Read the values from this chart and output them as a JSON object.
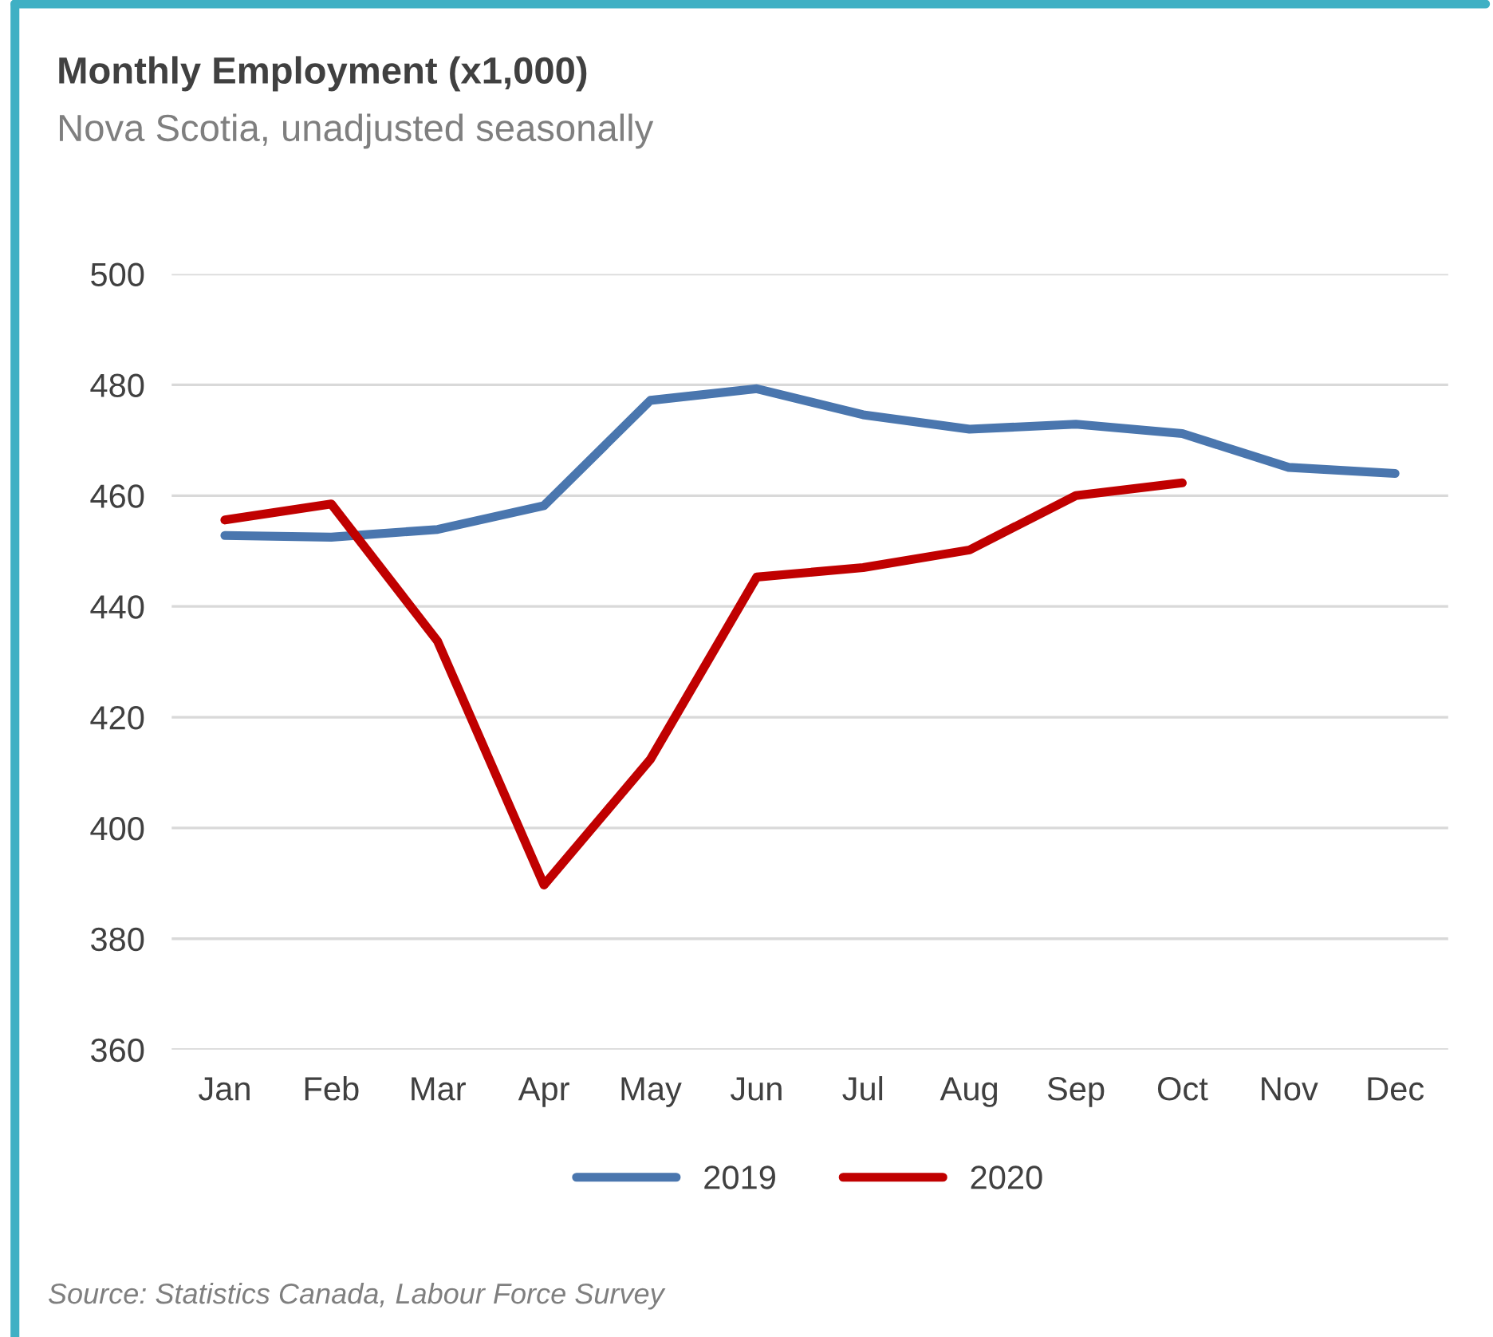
{
  "chart_data": {
    "type": "line",
    "title": "Monthly Employment (x1,000)",
    "subtitle": "Nova Scotia, unadjusted seasonally",
    "categories": [
      "Jan",
      "Feb",
      "Mar",
      "Apr",
      "May",
      "Jun",
      "Jul",
      "Aug",
      "Sep",
      "Oct",
      "Nov",
      "Dec"
    ],
    "series": [
      {
        "name": "2019",
        "color": "#4a76ae",
        "values": [
          452.8,
          452.5,
          453.9,
          458.2,
          477.2,
          479.3,
          474.6,
          472.0,
          472.9,
          471.2,
          465.1,
          464.0
        ]
      },
      {
        "name": "2020",
        "color": "#c00000",
        "values": [
          455.6,
          458.5,
          433.7,
          389.7,
          412.4,
          445.3,
          447.0,
          450.2,
          460.0,
          462.3,
          null,
          null
        ]
      }
    ],
    "ylim": [
      360,
      500
    ],
    "yticks": [
      360,
      380,
      400,
      420,
      440,
      460,
      480,
      500
    ],
    "grid": "y",
    "legend": "bottom",
    "marker": "none",
    "line_style": "solid",
    "annotations": [
      "Source: Statistics Canada, Labour Force Survey"
    ]
  }
}
